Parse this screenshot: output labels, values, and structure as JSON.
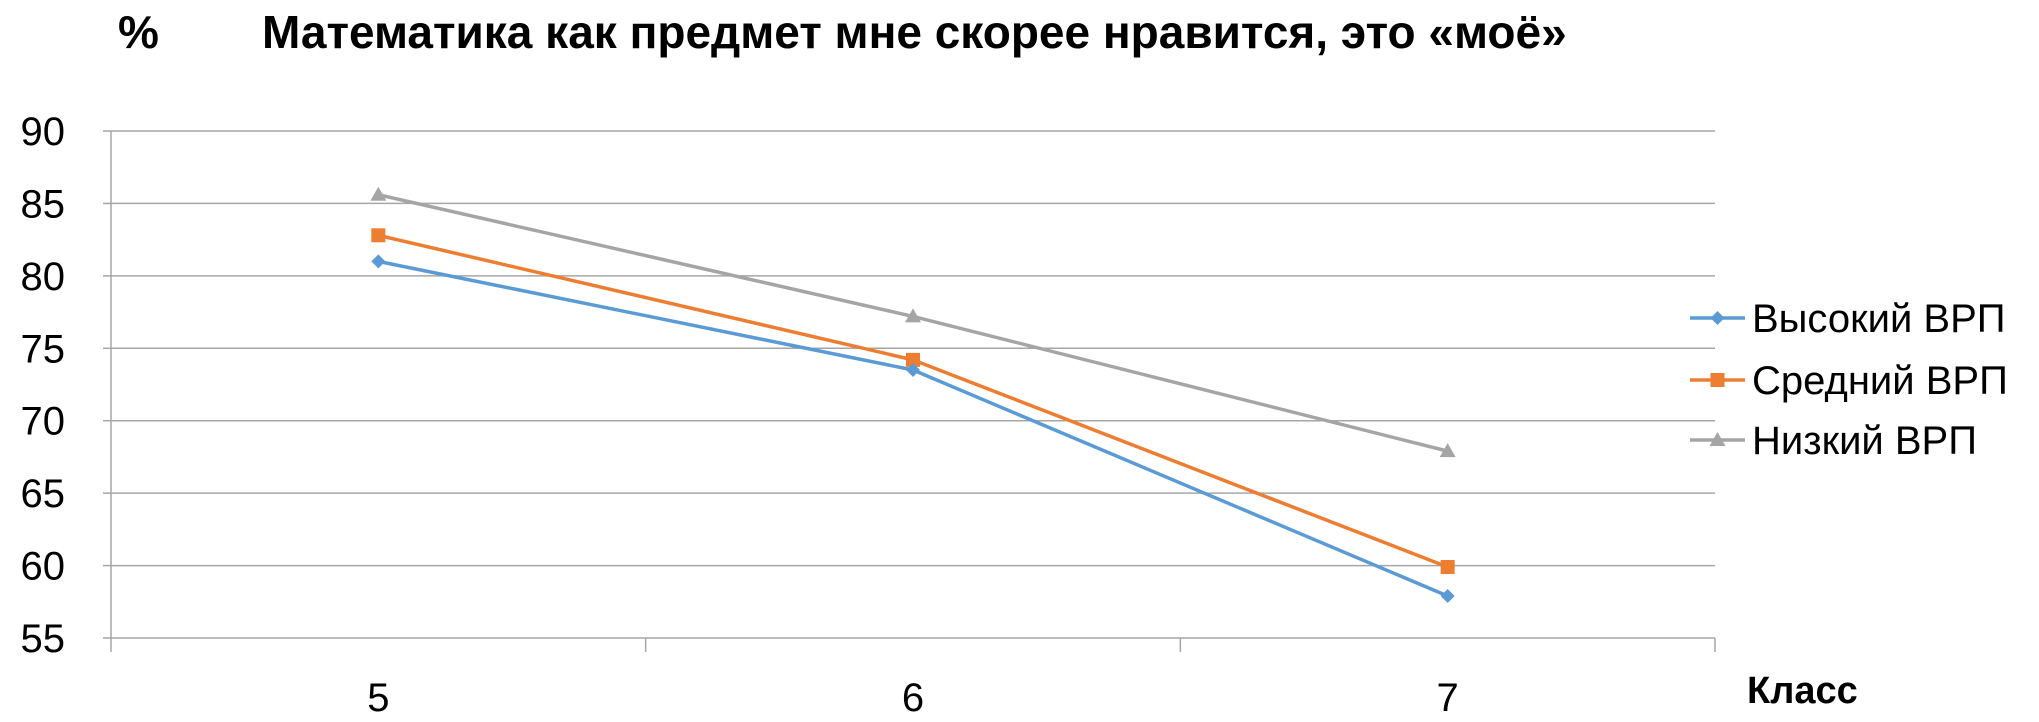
{
  "chart_data": {
    "type": "line",
    "title": "Математика как предмет мне скорее нравится, это «моё»",
    "ylabel": "%",
    "xlabel": "Класс",
    "categories": [
      "5",
      "6",
      "7"
    ],
    "ylim": [
      55,
      90
    ],
    "yticks": [
      "90",
      "85",
      "80",
      "75",
      "70",
      "65",
      "60",
      "55"
    ],
    "grid": true,
    "legend_position": "right",
    "series": [
      {
        "name": "Высокий ВРП",
        "values": [
          81.0,
          73.5,
          57.9
        ],
        "color": "#5B9BD5",
        "marker": "diamond"
      },
      {
        "name": "Средний ВРП",
        "values": [
          82.8,
          74.2,
          59.9
        ],
        "color": "#ED7D31",
        "marker": "square"
      },
      {
        "name": "Низкий ВРП",
        "values": [
          85.6,
          77.2,
          67.9
        ],
        "color": "#A5A5A5",
        "marker": "triangle"
      }
    ]
  }
}
